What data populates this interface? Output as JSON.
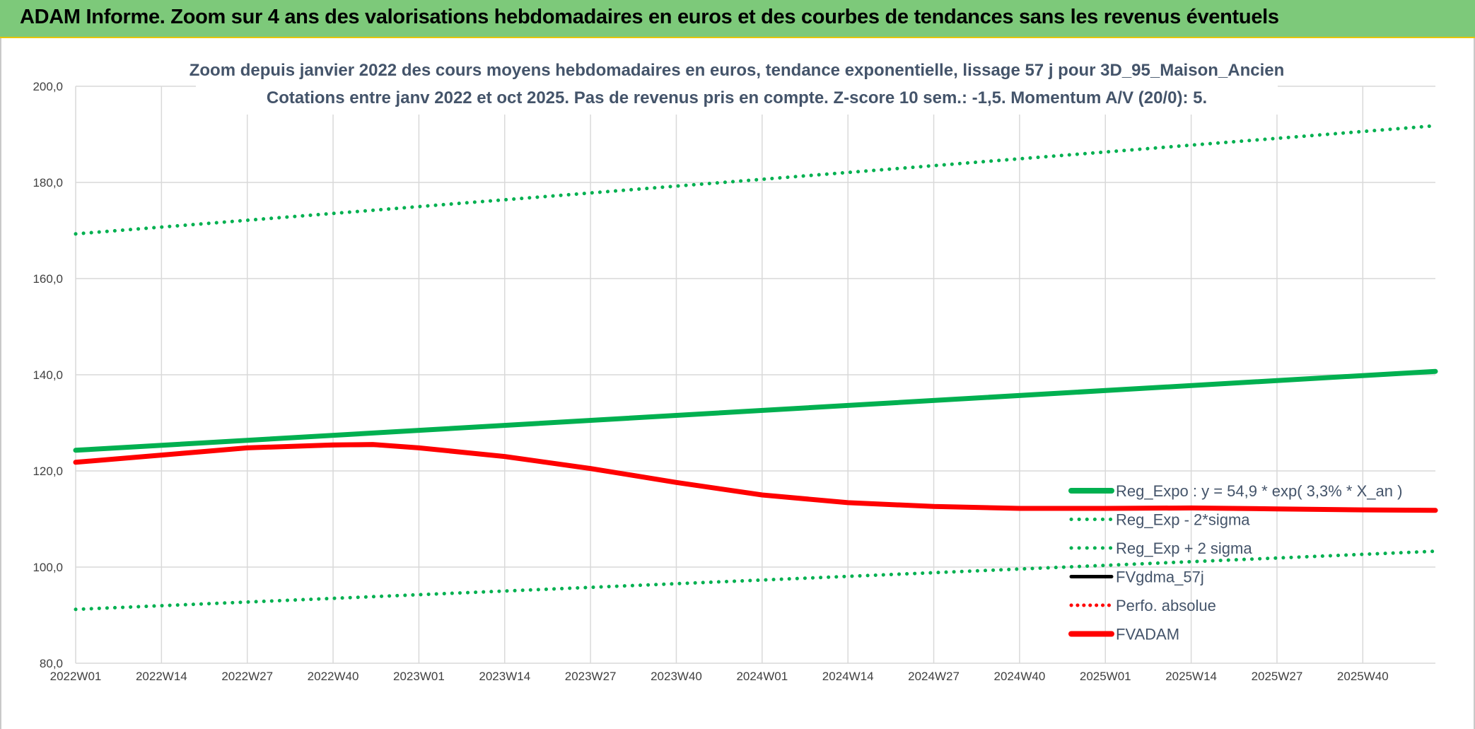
{
  "banner": {
    "title": "ADAM Informe. Zoom sur 4 ans des valorisations hebdomadaires en euros et des courbes de tendances sans les revenus éventuels"
  },
  "chart_data": {
    "type": "line",
    "title_lines": [
      "Zoom depuis janvier 2022 des cours moyens hebdomadaires en euros, tendance exponentielle, lissage 57 j pour 3D_95_Maison_Ancien",
      "Cotations entre janv 2022 et oct 2025. Pas de revenus pris en compte. Z-score 10 sem.: -1,5. Momentum A/V (20/0): 5."
    ],
    "xlabel": "",
    "ylabel": "",
    "ylim": [
      80,
      200
    ],
    "y_ticks": [
      "80,0",
      "100,0",
      "120,0",
      "140,0",
      "160,0",
      "180,0",
      "200,0"
    ],
    "x_ticks": [
      "2022W01",
      "2022W14",
      "2022W27",
      "2022W40",
      "2023W01",
      "2023W14",
      "2023W27",
      "2023W40",
      "2024W01",
      "2024W14",
      "2024W27",
      "2024W40",
      "2025W01",
      "2025W14",
      "2025W27",
      "2025W40"
    ],
    "x_max_week_index": 206,
    "grid": true,
    "legend_position": "bottom-right",
    "series": [
      {
        "name": "Reg_Expo : y = 54,9 * exp( 3,3% *  X_an )",
        "color": "#00b050",
        "style": "solid",
        "width": 7,
        "points": [
          [
            0,
            124.3
          ],
          [
            206,
            140.7
          ]
        ]
      },
      {
        "name": "Reg_Exp - 2*sigma",
        "color": "#00b050",
        "style": "dotted",
        "width": 5,
        "points": [
          [
            0,
            91.2
          ],
          [
            206,
            103.3
          ]
        ]
      },
      {
        "name": "Reg_Exp + 2 sigma",
        "color": "#00b050",
        "style": "dotted",
        "width": 5,
        "points": [
          [
            0,
            169.3
          ],
          [
            206,
            191.8
          ]
        ]
      },
      {
        "name": "FVgdma_57j",
        "color": "#000000",
        "style": "solid",
        "width": 4,
        "points": [
          [
            0,
            121.8
          ],
          [
            13,
            123.3
          ],
          [
            26,
            124.7
          ],
          [
            39,
            125.2
          ],
          [
            45,
            125.3
          ],
          [
            52,
            124.7
          ],
          [
            65,
            123.0
          ],
          [
            78,
            120.5
          ],
          [
            91,
            117.6
          ],
          [
            104,
            115.1
          ],
          [
            117,
            113.5
          ],
          [
            130,
            112.6
          ],
          [
            143,
            112.2
          ],
          [
            156,
            112.2
          ],
          [
            169,
            112.2
          ],
          [
            182,
            112.0
          ],
          [
            195,
            111.9
          ],
          [
            206,
            111.8
          ]
        ]
      },
      {
        "name": "Perfo. absolue",
        "color": "#ff0000",
        "style": "dotted",
        "width": 4,
        "points": []
      },
      {
        "name": "FVADAM",
        "color": "#ff0000",
        "style": "solid",
        "width": 7,
        "points": [
          [
            0,
            121.8
          ],
          [
            13,
            123.3
          ],
          [
            26,
            124.8
          ],
          [
            39,
            125.4
          ],
          [
            45,
            125.5
          ],
          [
            52,
            124.8
          ],
          [
            65,
            123.0
          ],
          [
            78,
            120.5
          ],
          [
            91,
            117.6
          ],
          [
            104,
            115.0
          ],
          [
            117,
            113.4
          ],
          [
            130,
            112.6
          ],
          [
            143,
            112.2
          ],
          [
            156,
            112.2
          ],
          [
            169,
            112.3
          ],
          [
            182,
            112.1
          ],
          [
            195,
            111.9
          ],
          [
            206,
            111.8
          ]
        ]
      }
    ]
  }
}
